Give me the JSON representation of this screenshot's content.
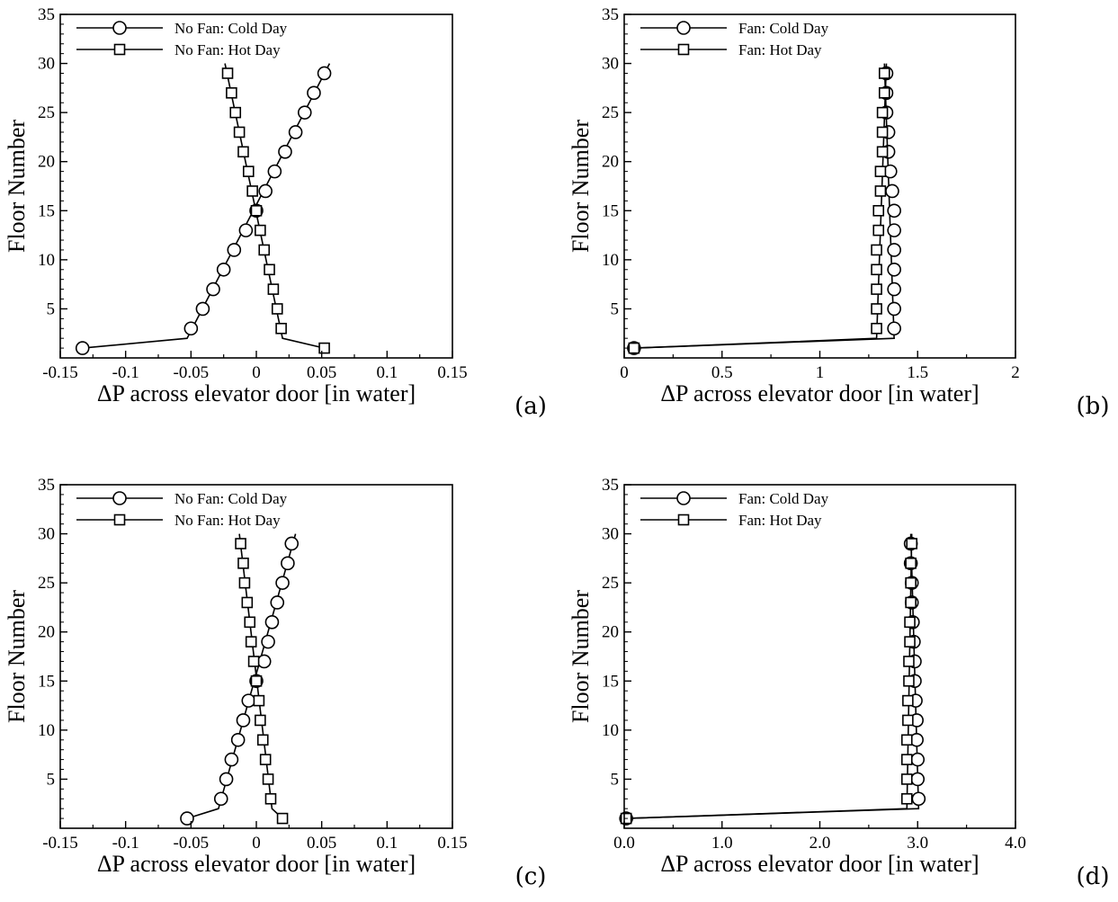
{
  "chart_data": [
    {
      "type": "line",
      "panel_label": "(a)",
      "xlabel": "ΔP across elevator door [in water]",
      "ylabel": "Floor Number",
      "xlim": [
        -0.15,
        0.15
      ],
      "ylim": [
        0,
        35
      ],
      "xticks": [
        -0.15,
        -0.1,
        -0.05,
        0,
        0.05,
        0.1,
        0.15
      ],
      "xtick_labels": [
        "-0.15",
        "-0.1",
        "-0.05",
        "0",
        "0.05",
        "0.1",
        "0.15"
      ],
      "yticks": [
        5,
        10,
        15,
        20,
        25,
        30,
        35
      ],
      "ytick_labels": [
        "5",
        "10",
        "15",
        "20",
        "25",
        "30",
        "35"
      ],
      "legend_position": "top-left",
      "series": [
        {
          "name": "No Fan: Cold Day",
          "marker": "circle",
          "line": [
            [
              -0.133,
              1
            ],
            [
              -0.053,
              2
            ],
            [
              0.056,
              30
            ]
          ],
          "x": [
            -0.133,
            -0.05,
            -0.041,
            -0.033,
            -0.025,
            -0.017,
            -0.008,
            0.0,
            0.007,
            0.014,
            0.022,
            0.03,
            0.037,
            0.044,
            0.052
          ],
          "y": [
            1,
            3,
            5,
            7,
            9,
            11,
            13,
            15,
            17,
            19,
            21,
            23,
            25,
            27,
            29
          ]
        },
        {
          "name": "No Fan: Hot Day",
          "marker": "square",
          "line": [
            [
              0.052,
              1
            ],
            [
              0.02,
              2
            ],
            [
              -0.024,
              30
            ]
          ],
          "x": [
            0.052,
            0.019,
            0.016,
            0.013,
            0.01,
            0.006,
            0.003,
            0.0,
            -0.003,
            -0.006,
            -0.01,
            -0.013,
            -0.016,
            -0.019,
            -0.022
          ],
          "y": [
            1,
            3,
            5,
            7,
            9,
            11,
            13,
            15,
            17,
            19,
            21,
            23,
            25,
            27,
            29
          ]
        }
      ]
    },
    {
      "type": "line",
      "panel_label": "(b)",
      "xlabel": "ΔP across elevator door [in water]",
      "ylabel": "Floor Number",
      "xlim": [
        0,
        2
      ],
      "ylim": [
        0,
        35
      ],
      "xticks": [
        0,
        0.5,
        1,
        1.5,
        2
      ],
      "xtick_labels": [
        "0",
        "0.5",
        "1",
        "1.5",
        "2"
      ],
      "yticks": [
        5,
        10,
        15,
        20,
        25,
        30,
        35
      ],
      "ytick_labels": [
        "5",
        "10",
        "15",
        "20",
        "25",
        "30",
        "35"
      ],
      "legend_position": "top-left",
      "series": [
        {
          "name": "Fan: Cold Day",
          "marker": "circle",
          "line": [
            [
              0.05,
              1
            ],
            [
              1.38,
              2
            ],
            [
              1.33,
              30
            ]
          ],
          "x": [
            0.05,
            1.38,
            1.38,
            1.38,
            1.38,
            1.38,
            1.38,
            1.38,
            1.37,
            1.36,
            1.35,
            1.35,
            1.34,
            1.34,
            1.34
          ],
          "y": [
            1,
            3,
            5,
            7,
            9,
            11,
            13,
            15,
            17,
            19,
            21,
            23,
            25,
            27,
            29
          ]
        },
        {
          "name": "Fan: Hot Day",
          "marker": "square",
          "line": [
            [
              0.05,
              1
            ],
            [
              1.29,
              2
            ],
            [
              1.34,
              30
            ]
          ],
          "x": [
            0.05,
            1.29,
            1.29,
            1.29,
            1.29,
            1.29,
            1.3,
            1.3,
            1.31,
            1.31,
            1.32,
            1.32,
            1.32,
            1.33,
            1.33
          ],
          "y": [
            1,
            3,
            5,
            7,
            9,
            11,
            13,
            15,
            17,
            19,
            21,
            23,
            25,
            27,
            29
          ]
        }
      ]
    },
    {
      "type": "line",
      "panel_label": "(c)",
      "xlabel": "ΔP across elevator door [in water]",
      "ylabel": "Floor Number",
      "xlim": [
        -0.15,
        0.15
      ],
      "ylim": [
        0,
        35
      ],
      "xticks": [
        -0.15,
        -0.1,
        -0.05,
        0,
        0.05,
        0.1,
        0.15
      ],
      "xtick_labels": [
        "-0.15",
        "-0.1",
        "-0.05",
        "0",
        "0.05",
        "0.1",
        "0.15"
      ],
      "yticks": [
        5,
        10,
        15,
        20,
        25,
        30,
        35
      ],
      "ytick_labels": [
        "5",
        "10",
        "15",
        "20",
        "25",
        "30",
        "35"
      ],
      "legend_position": "top-left",
      "series": [
        {
          "name": "No Fan: Cold Day",
          "marker": "circle",
          "line": [
            [
              -0.053,
              1
            ],
            [
              -0.029,
              2
            ],
            [
              0.03,
              30
            ]
          ],
          "x": [
            -0.053,
            -0.027,
            -0.023,
            -0.019,
            -0.014,
            -0.01,
            -0.006,
            0.0,
            0.006,
            0.009,
            0.012,
            0.016,
            0.02,
            0.024,
            0.027
          ],
          "y": [
            1,
            3,
            5,
            7,
            9,
            11,
            13,
            15,
            17,
            19,
            21,
            23,
            25,
            27,
            29
          ]
        },
        {
          "name": "No Fan: Hot Day",
          "marker": "square",
          "line": [
            [
              0.02,
              1
            ],
            [
              0.012,
              2
            ],
            [
              -0.013,
              30
            ]
          ],
          "x": [
            0.02,
            0.011,
            0.009,
            0.007,
            0.005,
            0.003,
            0.002,
            0.0,
            -0.002,
            -0.004,
            -0.005,
            -0.007,
            -0.009,
            -0.01,
            -0.012
          ],
          "y": [
            1,
            3,
            5,
            7,
            9,
            11,
            13,
            15,
            17,
            19,
            21,
            23,
            25,
            27,
            29
          ]
        }
      ]
    },
    {
      "type": "line",
      "panel_label": "(d)",
      "xlabel": "ΔP across elevator door [in water]",
      "ylabel": "Floor Number",
      "xlim": [
        0,
        4
      ],
      "ylim": [
        0,
        35
      ],
      "xticks": [
        0,
        1,
        2,
        3,
        4
      ],
      "xtick_labels": [
        "0.0",
        "1.0",
        "2.0",
        "3.0",
        "4.0"
      ],
      "yticks": [
        5,
        10,
        15,
        20,
        25,
        30,
        35
      ],
      "ytick_labels": [
        "5",
        "10",
        "15",
        "20",
        "25",
        "30",
        "35"
      ],
      "legend_position": "top-left",
      "series": [
        {
          "name": "Fan: Cold Day",
          "marker": "circle",
          "line": [
            [
              0.02,
              1
            ],
            [
              3.01,
              2
            ],
            [
              2.93,
              30
            ]
          ],
          "x": [
            0.02,
            3.01,
            3.0,
            3.0,
            2.99,
            2.99,
            2.98,
            2.97,
            2.97,
            2.96,
            2.95,
            2.94,
            2.94,
            2.93,
            2.93
          ],
          "y": [
            1,
            3,
            5,
            7,
            9,
            11,
            13,
            15,
            17,
            19,
            21,
            23,
            25,
            27,
            29
          ]
        },
        {
          "name": "Fan: Hot Day",
          "marker": "square",
          "line": [
            [
              0.02,
              1
            ],
            [
              2.89,
              2
            ],
            [
              2.94,
              30
            ]
          ],
          "x": [
            0.02,
            2.89,
            2.89,
            2.89,
            2.89,
            2.9,
            2.9,
            2.91,
            2.91,
            2.92,
            2.92,
            2.93,
            2.93,
            2.93,
            2.94
          ],
          "y": [
            1,
            3,
            5,
            7,
            9,
            11,
            13,
            15,
            17,
            19,
            21,
            23,
            25,
            27,
            29
          ]
        }
      ]
    }
  ]
}
